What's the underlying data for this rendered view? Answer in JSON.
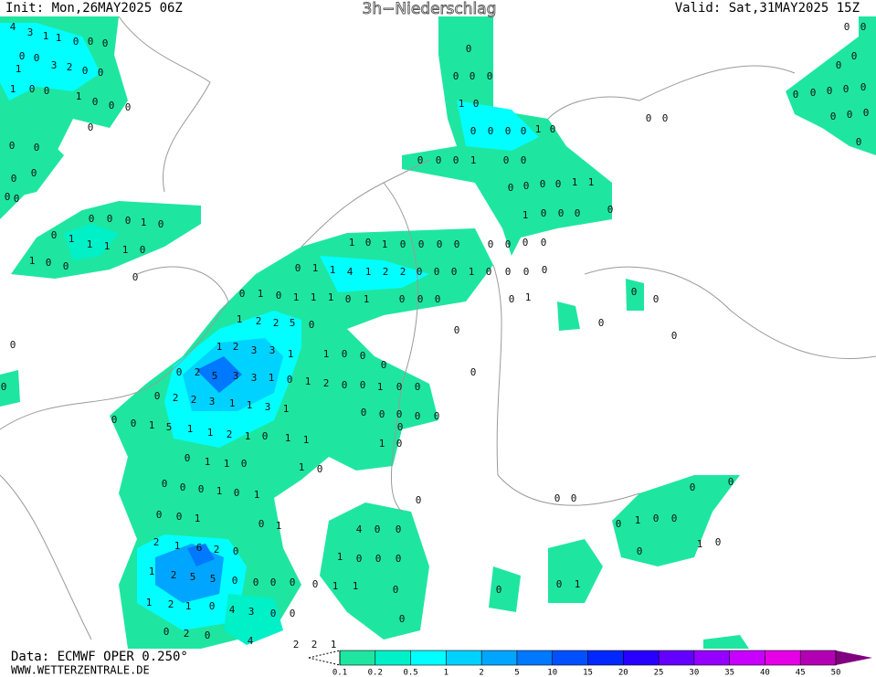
{
  "header": {
    "init": "Init: Mon,26MAY2025 06Z",
    "title": "3h−Niederschlag",
    "valid": "Valid: Sat,31MAY2025 15Z"
  },
  "footer": {
    "source": "Data: ECMWF OPER 0.250°",
    "url": "WWW.WETTERZENTRALE.DE"
  },
  "colorbar": {
    "levels": [
      0.1,
      0.2,
      0.5,
      1,
      2,
      5,
      10,
      15,
      20,
      25,
      30,
      35,
      40,
      45,
      50
    ],
    "colors": [
      "#1ee6a0",
      "#00f0c8",
      "#00ffff",
      "#00d2ff",
      "#00a5ff",
      "#0078ff",
      "#0050ff",
      "#0028ff",
      "#2800ff",
      "#6400ff",
      "#9600ff",
      "#c800ff",
      "#e600e6",
      "#b400b4"
    ],
    "overflow_color": "#800080"
  },
  "map_labels": [
    "4",
    "3",
    "1",
    "1",
    "0",
    "0",
    "0",
    "0",
    "0",
    "3",
    "2",
    "0",
    "0",
    "1",
    "1",
    "0",
    "0",
    "1",
    "0",
    "0",
    "0",
    "0",
    "0",
    "0",
    "1",
    "0",
    "0",
    "1",
    "1",
    "1",
    "1",
    "0",
    "1",
    "0",
    "0",
    "0",
    "1",
    "0",
    "1",
    "0",
    "0",
    "0",
    "0",
    "0",
    "1",
    "1",
    "4",
    "1",
    "2",
    "2",
    "0",
    "0",
    "0",
    "1",
    "0",
    "0",
    "1",
    "0",
    "1",
    "1",
    "1",
    "0",
    "1",
    "0",
    "0",
    "0",
    "1",
    "2",
    "2",
    "5",
    "0",
    "1",
    "2",
    "3",
    "3",
    "1",
    "1",
    "0",
    "0",
    "0",
    "2",
    "5",
    "3",
    "3",
    "1",
    "0",
    "1",
    "2",
    "0",
    "0",
    "1",
    "0",
    "0",
    "0",
    "2",
    "2",
    "3",
    "1",
    "1",
    "3",
    "1",
    "0",
    "0",
    "1",
    "5",
    "1",
    "1",
    "2",
    "1",
    "0",
    "1",
    "1",
    "0",
    "0",
    "0",
    "0",
    "0",
    "0",
    "1",
    "0",
    "0",
    "1",
    "1",
    "0",
    "1",
    "0",
    "0",
    "0",
    "0",
    "1",
    "0",
    "1",
    "0",
    "0",
    "1",
    "0",
    "1",
    "2",
    "1",
    "6",
    "2",
    "0",
    "1",
    "2",
    "5",
    "5",
    "0",
    "0",
    "0",
    "0",
    "0",
    "1",
    "1",
    "0",
    "1",
    "2",
    "1",
    "0",
    "4",
    "3",
    "0",
    "0",
    "0",
    "2",
    "0",
    "4",
    "2",
    "2",
    "1",
    "4",
    "0",
    "0",
    "1",
    "0",
    "0",
    "0",
    "0",
    "0",
    "0",
    "0",
    "0",
    "1",
    "0",
    "0",
    "0",
    "0",
    "1",
    "0",
    "0",
    "0",
    "0",
    "1",
    "0",
    "0",
    "0",
    "0",
    "0",
    "0",
    "0",
    "1",
    "1",
    "1",
    "0",
    "0",
    "0",
    "0",
    "0",
    "0",
    "0",
    "0",
    "0",
    "0",
    "1",
    "0",
    "0",
    "0",
    "0",
    "0",
    "0",
    "0",
    "0",
    "0",
    "0",
    "0",
    "0",
    "0",
    "0",
    "0",
    "0",
    "0",
    "0",
    "0",
    "0",
    "0",
    "0",
    "0",
    "0",
    "0",
    "0",
    "0",
    "0",
    "0",
    "1",
    "0",
    "0",
    "0",
    "1",
    "0",
    "0",
    "1",
    "0",
    "0",
    "0",
    "0",
    "0",
    "0",
    "0",
    "0",
    "0",
    "0",
    "0"
  ]
}
